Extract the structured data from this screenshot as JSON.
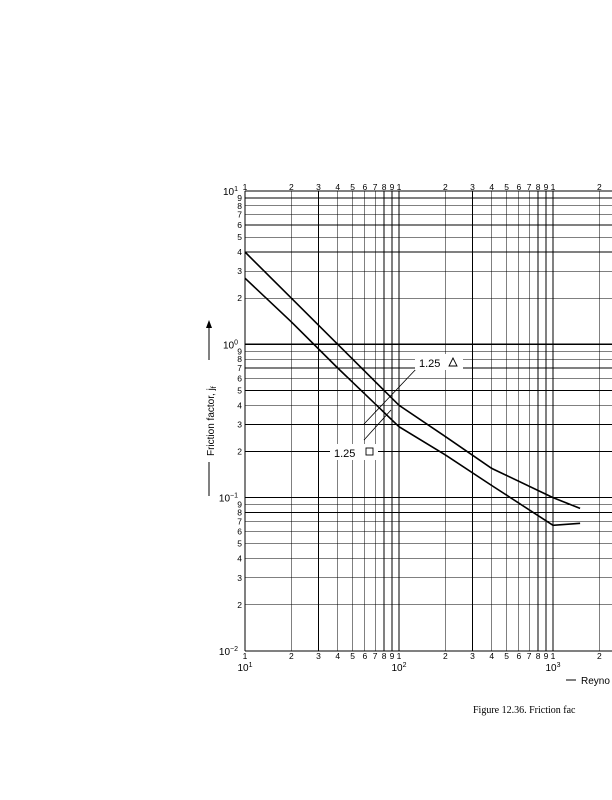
{
  "caption": "Figure 12.36.   Friction fac",
  "chart_data": {
    "type": "line",
    "x_scale": "log",
    "y_scale": "log",
    "xlim": [
      10,
      1500
    ],
    "ylim": [
      0.01,
      10
    ],
    "ylabel": "Friction factor, j",
    "ylabel_subscript": "f",
    "xlabel": "Reyno",
    "x_ticks": [
      {
        "value": 10,
        "label": "10"
      },
      {
        "value": 100,
        "label": "10"
      },
      {
        "value": 1000,
        "label": "10"
      }
    ],
    "y_ticks": [
      {
        "value": 10,
        "label": "10"
      },
      {
        "value": 1,
        "label": "10"
      },
      {
        "value": 0.1,
        "label": "10"
      },
      {
        "value": 0.01,
        "label": "10"
      }
    ],
    "x_tick_exponents": [
      "1",
      "2",
      "3"
    ],
    "y_tick_exponents": [
      "1",
      "0",
      "−1",
      "−2"
    ],
    "series": [
      {
        "marker": "triangle",
        "label": "1.25",
        "x": [
          10,
          20,
          40,
          100,
          200,
          400,
          1000,
          1500
        ],
        "y": [
          4.0,
          2.0,
          1.0,
          0.4,
          0.25,
          0.155,
          0.1,
          0.085
        ]
      },
      {
        "marker": "square",
        "label": "1.25",
        "x": [
          10,
          20,
          40,
          100,
          200,
          400,
          1000,
          1500
        ],
        "y": [
          2.7,
          1.4,
          0.7,
          0.29,
          0.19,
          0.12,
          0.066,
          0.068
        ]
      }
    ]
  }
}
